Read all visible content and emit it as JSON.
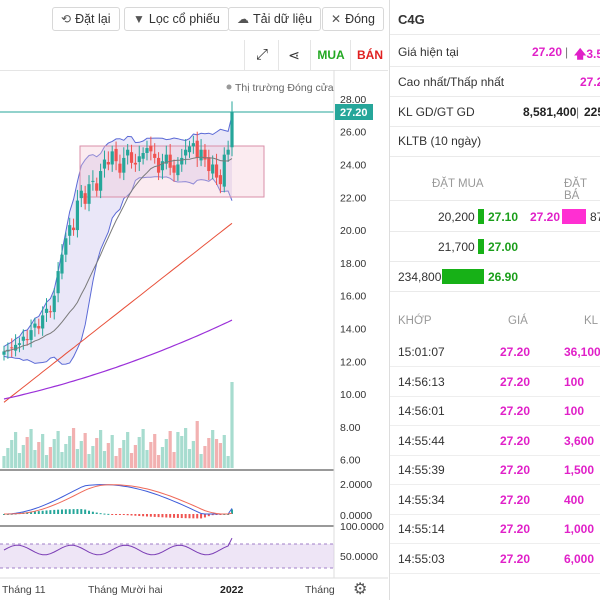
{
  "toolbar": {
    "reset_label": "Đặt lại",
    "filter_label": "Lọc cổ phiếu",
    "download_label": "Tải dữ liệu",
    "close_label": "Đóng"
  },
  "subbar": {
    "buy_label": "MUA",
    "sell_label": "BÁN"
  },
  "chart": {
    "market_status": "Thị trường Đóng cửa",
    "last_price_tag": "27.20",
    "price_axis_ticks": [
      "28.00",
      "26.00",
      "24.00",
      "22.00",
      "20.00",
      "18.00",
      "16.00",
      "14.00",
      "12.00",
      "10.00",
      "8.00",
      "6.00"
    ],
    "macd_axis_ticks": [
      "2.0000",
      "0.0000"
    ],
    "rsi_axis_ticks": [
      "50.0000"
    ],
    "rsi_top_tick": "100.0000",
    "x_axis_labels": [
      "Tháng 11",
      "Tháng Mười hai",
      "2022",
      "Tháng"
    ],
    "settings_icon": "gear-icon",
    "colors": {
      "up": "#26a69a",
      "down": "#ef5350",
      "bb_fill": "#b3a8e6",
      "box": "#e8b7c8",
      "ma_long": "#9b30d9",
      "ma_mid": "#e8503a"
    }
  },
  "chart_data": {
    "type": "candlestick",
    "ylim": [
      5.5,
      29
    ],
    "last_price": 27.2,
    "closes": [
      12.6,
      12.7,
      12.8,
      13.0,
      13.1,
      13.5,
      13.3,
      13.9,
      14.3,
      14.0,
      14.8,
      15.2,
      15.0,
      16.0,
      17.5,
      18.5,
      19.5,
      20.3,
      20.0,
      21.8,
      22.4,
      21.6,
      22.8,
      23.0,
      22.4,
      23.6,
      24.3,
      24.0,
      24.8,
      24.2,
      23.5,
      24.4,
      24.9,
      24.1,
      24.0,
      24.5,
      24.7,
      25.0,
      24.8,
      24.4,
      23.5,
      24.2,
      24.6,
      23.8,
      23.5,
      24.0,
      24.4,
      24.9,
      25.1,
      25.3,
      24.4,
      24.9,
      24.3,
      23.6,
      24.0,
      23.2,
      22.8,
      24.6,
      24.9,
      27.2
    ]
  },
  "panel": {
    "symbol": "C4G",
    "current_price_label": "Giá hiện tại",
    "current_price_value": "27.20",
    "current_price_sep": "|",
    "current_change": "3.5",
    "high_low_label": "Cao nhất/Thấp nhất",
    "high_low_value": "27.2",
    "volume_label": "KL GD/GT GD",
    "volume_value": "8,581,400",
    "volume_sep": "|",
    "value_partial": "225",
    "avg_vol_label": "KLTB (10 ngày)",
    "orderbook": {
      "buy_header": "ĐẶT MUA",
      "sell_header": "ĐẶT BÁ",
      "bids": [
        {
          "vol": "20,200",
          "price": "27.10"
        },
        {
          "vol": "21,700",
          "price": "27.00"
        },
        {
          "vol": "234,800",
          "price": "26.90"
        }
      ],
      "ask_price": "27.20",
      "ask_vol_partial": "87"
    },
    "trades": {
      "headers": [
        "KHỚP",
        "GIÁ",
        "KL"
      ],
      "rows": [
        {
          "time": "15:01:07",
          "price": "27.20",
          "vol": "36,100"
        },
        {
          "time": "14:56:13",
          "price": "27.20",
          "vol": "100"
        },
        {
          "time": "14:56:01",
          "price": "27.20",
          "vol": "100"
        },
        {
          "time": "14:55:44",
          "price": "27.20",
          "vol": "3,600"
        },
        {
          "time": "14:55:39",
          "price": "27.20",
          "vol": "1,500"
        },
        {
          "time": "14:55:34",
          "price": "27.20",
          "vol": "400"
        },
        {
          "time": "14:55:14",
          "price": "27.20",
          "vol": "1,000"
        },
        {
          "time": "14:55:03",
          "price": "27.20",
          "vol": "6,000"
        }
      ]
    }
  }
}
